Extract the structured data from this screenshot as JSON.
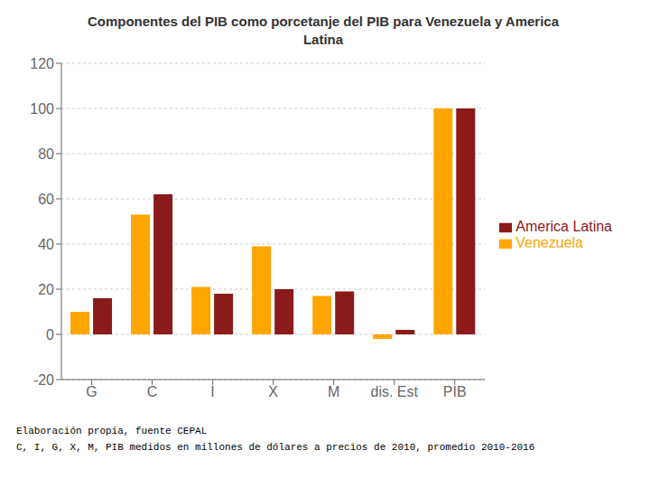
{
  "chart_data": {
    "type": "bar",
    "title": "Componentes del PIB como porcetanje del PIB para Venezuela y America\nLatina",
    "categories": [
      "G",
      "C",
      "I",
      "X",
      "M",
      "dis. Est",
      "PIB"
    ],
    "series": [
      {
        "name": "Venezuela",
        "color": "#FFA500",
        "values": [
          10,
          53,
          21,
          39,
          17,
          -2,
          100
        ]
      },
      {
        "name": "America Latina",
        "color": "#8B1A1A",
        "values": [
          16,
          62,
          18,
          20,
          19,
          2,
          100
        ]
      }
    ],
    "ylim": [
      -20,
      120
    ],
    "yticks": [
      -20,
      0,
      20,
      40,
      60,
      80,
      100,
      120
    ],
    "grid": true,
    "legend": "right",
    "annotations": [
      "Elaboración propia, fuente CEPAL",
      "C, I, G, X, M, PIB medidos en millones de dólares a precios de 2010, promedio 2010-2016"
    ]
  }
}
